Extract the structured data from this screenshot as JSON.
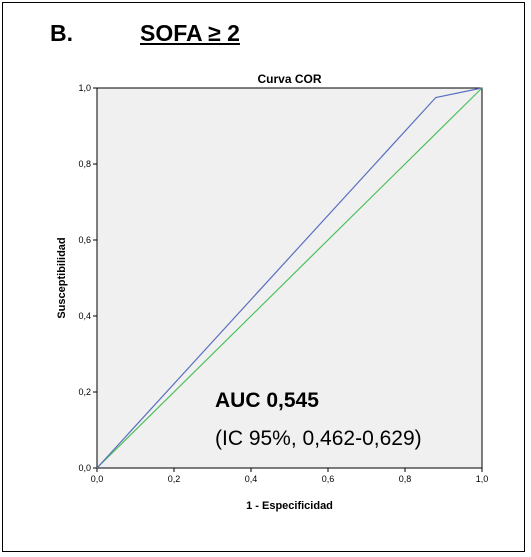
{
  "panel": {
    "letter": "B.",
    "title": "SOFA ≥ 2"
  },
  "annotation": {
    "auc": "AUC 0,545",
    "ci": "(IC 95%, 0,462-0,629)"
  },
  "colors": {
    "roc_line": "#5b6fc0",
    "reference_line": "#4cc05a",
    "plot_background": "#f0f0f0"
  },
  "chart_data": {
    "type": "line",
    "title": "Curva COR",
    "xlabel": "1 - Especificidad",
    "ylabel": "Susceptibilidad",
    "xlim": [
      0,
      1
    ],
    "ylim": [
      0,
      1
    ],
    "grid": false,
    "xticks": [
      "0,0",
      "0,2",
      "0,4",
      "0,6",
      "0,8",
      "1,0"
    ],
    "yticks": [
      "0,0",
      "0,2",
      "0,4",
      "0,6",
      "0,8",
      "1,0"
    ],
    "series": [
      {
        "x": [
          0,
          0.88,
          1
        ],
        "y": [
          0,
          0.975,
          1
        ]
      },
      {
        "x": [
          0,
          1
        ],
        "y": [
          0,
          1
        ]
      }
    ]
  }
}
